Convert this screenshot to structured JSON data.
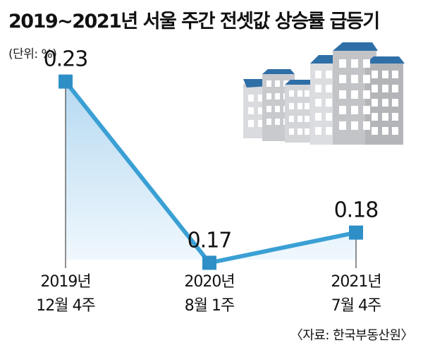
{
  "header": {
    "title": "2019~2021년 서울 주간 전셋값 상승률 급등기",
    "unit": "(단위: %)"
  },
  "footer": {
    "source": "〈자료: 한국부동산원〉"
  },
  "illustration": {
    "icon": "apartment-buildings-icon"
  },
  "colors": {
    "line": "#3aa0d4",
    "marker": "#2e8fc7",
    "area_top": "#a9d3ef",
    "area_bottom": "#eef7fd",
    "building_roof": "#2f6fa8",
    "building_wall": "#d9d9dc",
    "building_shadow": "#b4b5b9"
  },
  "chart_data": {
    "type": "line",
    "categories": [
      "2019년 12월 4주",
      "2020년 8월 1주",
      "2021년 7월 4주"
    ],
    "category_lines": [
      [
        "2019년",
        "12월 4주"
      ],
      [
        "2020년",
        "8월 1주"
      ],
      [
        "2021년",
        "7월 4주"
      ]
    ],
    "values": [
      0.23,
      0.17,
      0.18
    ],
    "value_labels": [
      "0.23",
      "0.17",
      "0.18"
    ],
    "ylabel": "(단위: %)",
    "ylim": [
      0.15,
      0.25
    ],
    "grid": false,
    "legend": "none"
  }
}
